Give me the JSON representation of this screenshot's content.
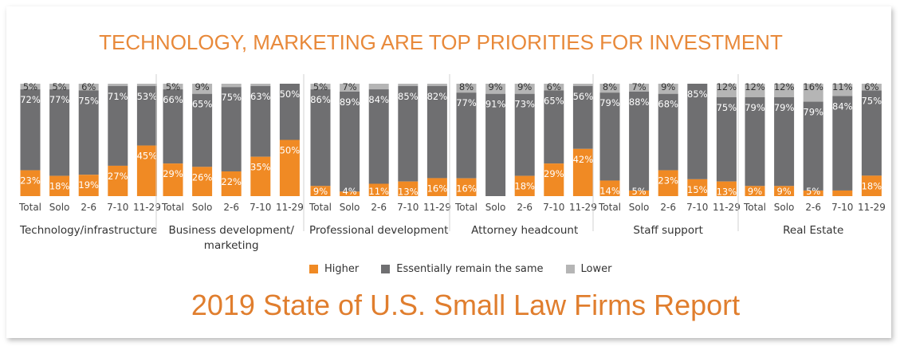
{
  "title": "TECHNOLOGY, MARKETING ARE TOP PRIORITIES FOR INVESTMENT",
  "report_title": "2019 State of U.S. Small Law Firms Report",
  "colors": {
    "higher": "#F08A24",
    "same": "#6F6F71",
    "lower": "#B5B5B5"
  },
  "chart_data": {
    "type": "bar",
    "stacked": true,
    "categories": [
      "Total",
      "Solo",
      "2-6",
      "7-10",
      "11-29"
    ],
    "legend": [
      "Higher",
      "Essentially remain the same",
      "Lower"
    ],
    "legend_position": "bottom",
    "grid": false,
    "groups": [
      {
        "name": "Technology/infrastructure",
        "higher": [
          23,
          18,
          19,
          27,
          45
        ],
        "same": [
          72,
          77,
          75,
          71,
          53
        ],
        "lower": [
          5,
          5,
          6,
          2,
          2
        ],
        "higher_labels": [
          "23%",
          "18%",
          "19%",
          "27%",
          "45%"
        ],
        "same_labels": [
          "72%",
          "77%",
          "75%",
          "71%",
          "53%"
        ],
        "lower_labels": [
          "5%",
          "5%",
          "6%",
          "",
          ""
        ]
      },
      {
        "name": "Business development/ marketing",
        "higher": [
          29,
          26,
          22,
          35,
          50
        ],
        "same": [
          66,
          65,
          75,
          63,
          50
        ],
        "lower": [
          5,
          9,
          3,
          2,
          0
        ],
        "higher_labels": [
          "29%",
          "26%",
          "22%",
          "35%",
          "50%"
        ],
        "same_labels": [
          "66%",
          "65%",
          "75%",
          "63%",
          "50%"
        ],
        "lower_labels": [
          "5%",
          "9%",
          "",
          "",
          ""
        ]
      },
      {
        "name": "Professional development",
        "higher": [
          9,
          4,
          11,
          13,
          16
        ],
        "same": [
          86,
          89,
          84,
          85,
          82
        ],
        "lower": [
          5,
          7,
          5,
          2,
          2
        ],
        "higher_labels": [
          "9%",
          "4%",
          "11%",
          "13%",
          "16%"
        ],
        "same_labels": [
          "86%",
          "89%",
          "84%",
          "85%",
          "82%"
        ],
        "lower_labels": [
          "5%",
          "7%",
          "",
          "",
          ""
        ]
      },
      {
        "name": "Attorney headcount",
        "higher": [
          16,
          0,
          18,
          29,
          42
        ],
        "same": [
          77,
          91,
          73,
          65,
          56
        ],
        "lower": [
          8,
          9,
          9,
          6,
          2
        ],
        "higher_labels": [
          "16%",
          "",
          "18%",
          "29%",
          "42%"
        ],
        "same_labels": [
          "77%",
          "91%",
          "73%",
          "65%",
          "56%"
        ],
        "lower_labels": [
          "8%",
          "9%",
          "9%",
          "6%",
          ""
        ]
      },
      {
        "name": "Staff support",
        "higher": [
          14,
          5,
          23,
          15,
          13
        ],
        "same": [
          79,
          88,
          68,
          85,
          75
        ],
        "lower": [
          8,
          7,
          9,
          0,
          12
        ],
        "higher_labels": [
          "14%",
          "5%",
          "23%",
          "15%",
          "13%"
        ],
        "same_labels": [
          "79%",
          "88%",
          "68%",
          "85%",
          "75%"
        ],
        "lower_labels": [
          "8%",
          "7%",
          "9%",
          "",
          "12%"
        ]
      },
      {
        "name": "Real Estate",
        "higher": [
          9,
          9,
          5,
          5,
          18
        ],
        "same": [
          79,
          79,
          79,
          84,
          75
        ],
        "lower": [
          12,
          12,
          16,
          11,
          6
        ],
        "higher_labels": [
          "9%",
          "9%",
          "5%",
          "",
          "18%"
        ],
        "same_labels": [
          "79%",
          "79%",
          "79%",
          "84%",
          "75%"
        ],
        "lower_labels": [
          "12%",
          "12%",
          "16%",
          "11%",
          "6%"
        ]
      }
    ]
  }
}
